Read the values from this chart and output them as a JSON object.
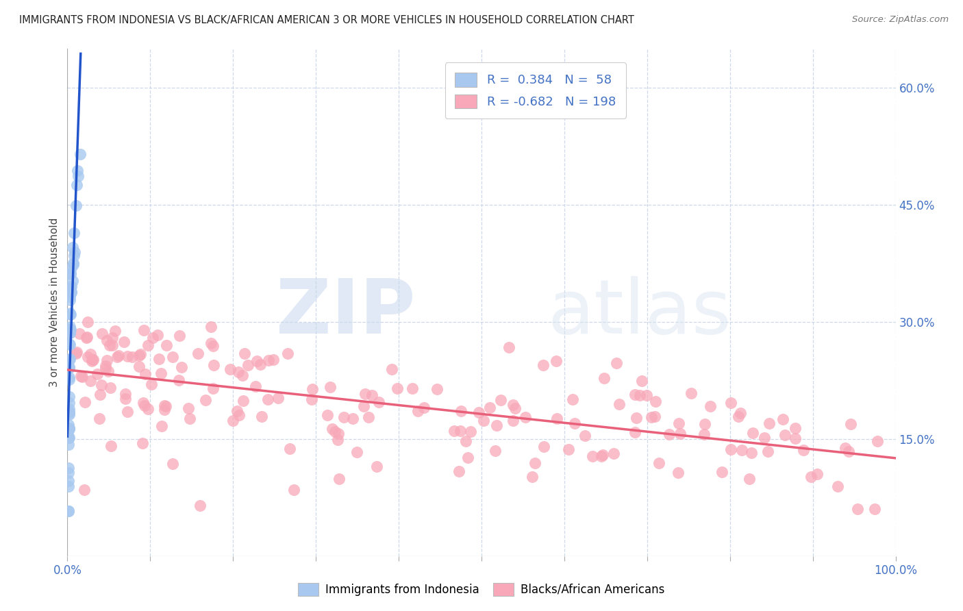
{
  "title": "IMMIGRANTS FROM INDONESIA VS BLACK/AFRICAN AMERICAN 3 OR MORE VEHICLES IN HOUSEHOLD CORRELATION CHART",
  "source": "Source: ZipAtlas.com",
  "ylabel": "3 or more Vehicles in Household",
  "xlim": [
    0.0,
    1.0
  ],
  "ylim": [
    0.0,
    0.65
  ],
  "ytick_vals_right": [
    0.15,
    0.3,
    0.45,
    0.6
  ],
  "ytick_labels_right": [
    "15.0%",
    "30.0%",
    "45.0%",
    "60.0%"
  ],
  "blue_R": 0.384,
  "blue_N": 58,
  "pink_R": -0.682,
  "pink_N": 198,
  "blue_color": "#a8c8f0",
  "pink_color": "#f8a8b8",
  "blue_line_color": "#2255cc",
  "pink_line_color": "#e8607a",
  "legend_label_blue": "Immigrants from Indonesia",
  "legend_label_pink": "Blacks/African Americans",
  "watermark_zip": "ZIP",
  "watermark_atlas": "atlas",
  "blue_scatter_seed": 12345,
  "pink_scatter_seed": 67890
}
